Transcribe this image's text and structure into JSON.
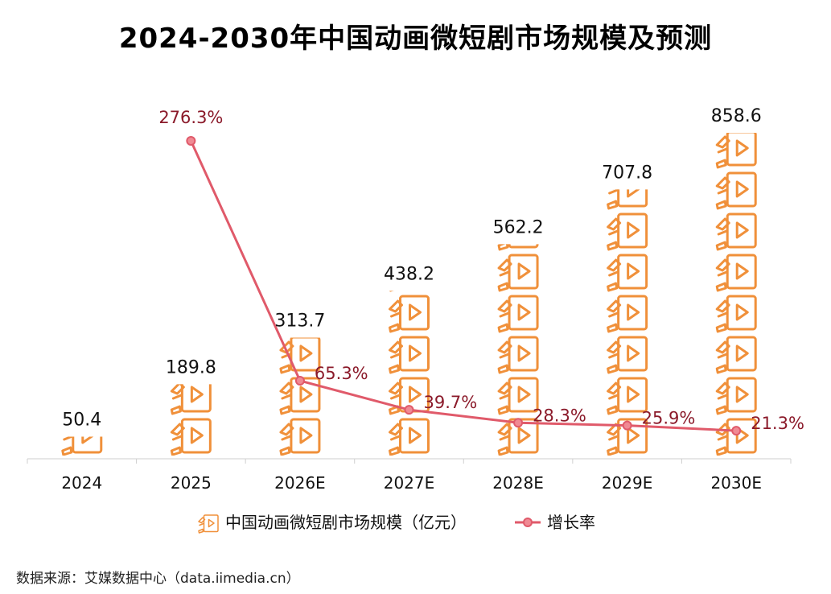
{
  "title": "2024-2030年中国动画微短剧市场规模及预测",
  "source": "数据来源：艾媒数据中心（data.iimedia.cn）",
  "chart_data": {
    "type": "bar",
    "title": "2024-2030年中国动画微短剧市场规模及预测",
    "categories": [
      "2024",
      "2025",
      "2026E",
      "2027E",
      "2028E",
      "2029E",
      "2030E"
    ],
    "series": [
      {
        "name": "中国动画微短剧市场规模（亿元）",
        "type": "bar",
        "values": [
          50.4,
          189.8,
          313.7,
          438.2,
          562.2,
          707.8,
          858.6
        ],
        "labels": [
          "50.4",
          "189.8",
          "313.7",
          "438.2",
          "562.2",
          "707.8",
          "858.6"
        ],
        "color": "#F0903A"
      },
      {
        "name": "增长率",
        "type": "line",
        "values": [
          null,
          276.3,
          65.3,
          39.7,
          28.3,
          25.9,
          21.3
        ],
        "labels": [
          "",
          "276.3%",
          "65.3%",
          "39.7%",
          "28.3%",
          "25.9%",
          "21.3%"
        ],
        "color": "#E05A6A",
        "label_color": "#8B1A2A"
      }
    ],
    "bar_icon": "video-clapper-icon",
    "grid": false,
    "legend": "bottom-center"
  }
}
